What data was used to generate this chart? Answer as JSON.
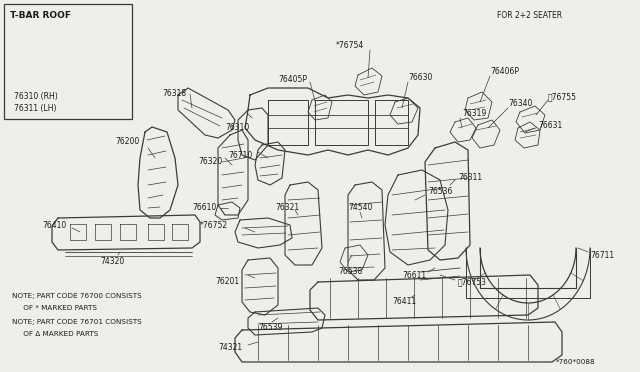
{
  "bg_color": "#efefea",
  "line_color": "#3a3a3a",
  "text_color": "#1a1a1a",
  "white_color": "#ffffff",
  "fig_w": 6.4,
  "fig_h": 3.72,
  "dpi": 100,
  "top_right_label": "FOR 2+2 SEATER",
  "bottom_right_label": "*760*0088",
  "note1a": "NOTE; PART CODE 76700 CONSISTS",
  "note1b": "     OF * MARKED PARTS",
  "note2a": "NOTE; PART CODE 76701 CONSISTS",
  "note2b": "     OF Δ MARKED PARTS",
  "tbar_label": "T-BAR ROOF",
  "tbar_sub1": "76310 (RH)",
  "tbar_sub2": "76311 (LH)"
}
